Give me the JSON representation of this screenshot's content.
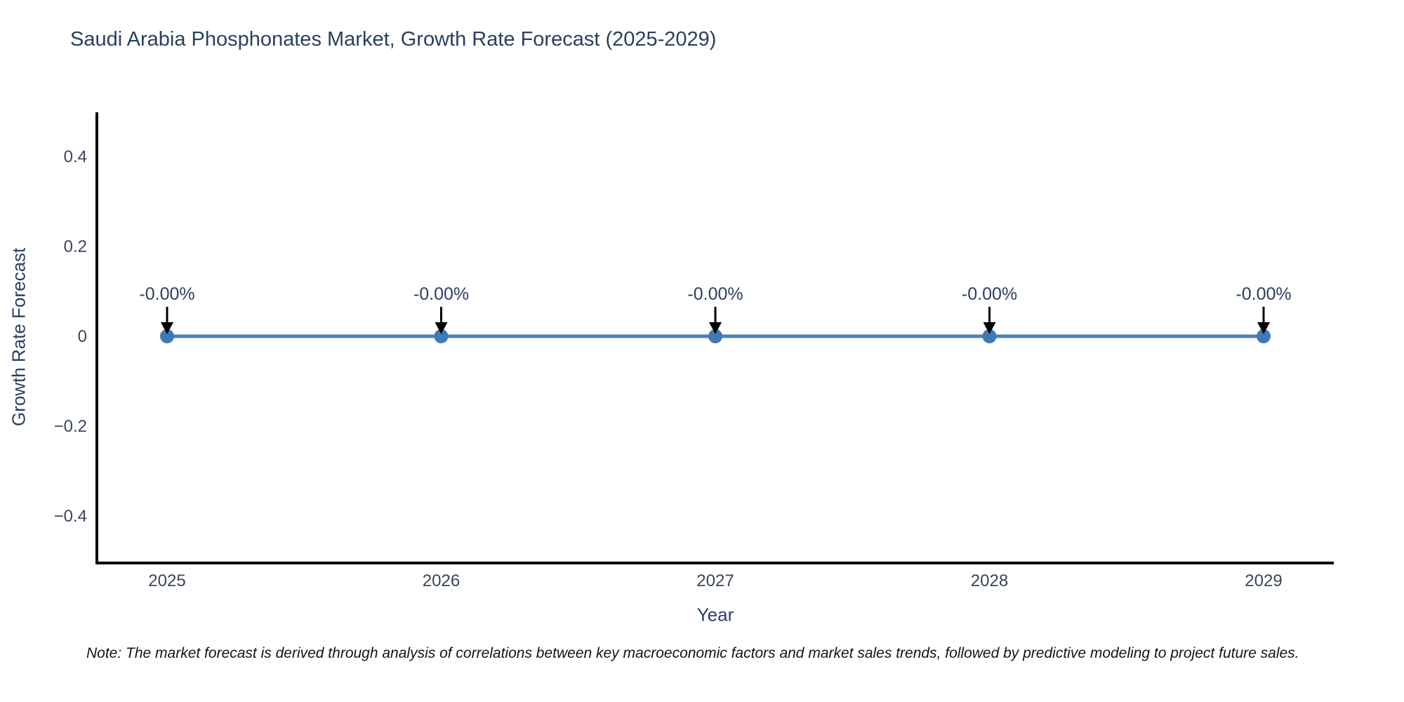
{
  "chart_data": {
    "type": "line",
    "title": "Saudi Arabia Phosphonates Market, Growth Rate Forecast (2025-2029)",
    "xlabel": "Year",
    "ylabel": "Growth Rate Forecast",
    "x": [
      2025,
      2026,
      2027,
      2028,
      2029
    ],
    "xtick_labels": [
      "2025",
      "2026",
      "2027",
      "2028",
      "2029"
    ],
    "series": [
      {
        "name": "Growth Rate Forecast",
        "values": [
          0,
          0,
          0,
          0,
          0
        ],
        "point_labels": [
          "-0.00%",
          "-0.00%",
          "-0.00%",
          "-0.00%",
          "-0.00%"
        ]
      }
    ],
    "yticks": [
      0.4,
      0.2,
      0,
      -0.2,
      -0.4
    ],
    "ytick_labels": [
      "0.4",
      "0.2",
      "0",
      "−0.2",
      "−0.4"
    ],
    "ylim": [
      -0.505,
      0.498
    ],
    "grid": false,
    "legend": "none",
    "annotations_have_arrows": true,
    "colors": {
      "line": "#4c81b3",
      "marker": "#3e7ab5",
      "axis_line": "#000000",
      "arrow": "#000000",
      "text": "#2a3f5f",
      "tick_text": "#39465a"
    }
  },
  "note": "Note: The market forecast is derived through analysis of correlations between key macroeconomic factors and market sales trends, followed by predictive modeling to project future sales."
}
